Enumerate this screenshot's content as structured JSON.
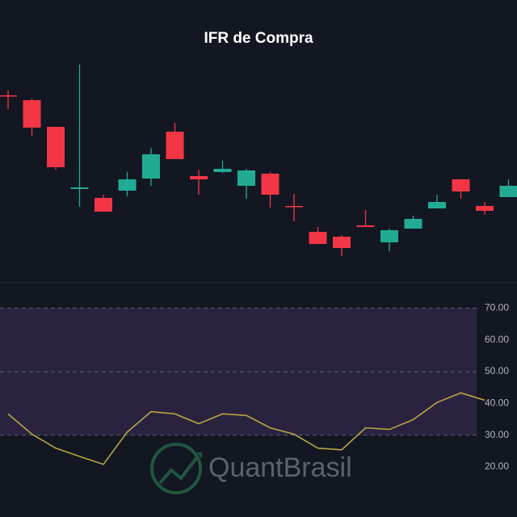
{
  "chart_data": [
    {
      "type": "candlestick",
      "title": "IFR de Compra",
      "open": [
        282,
        276,
        243,
        166,
        155,
        164,
        179,
        237,
        182,
        187,
        170,
        185,
        145,
        113,
        107,
        121,
        100,
        117,
        142,
        178,
        145,
        156
      ],
      "high": [
        288,
        278,
        243,
        320,
        159,
        187,
        217,
        248,
        190,
        201,
        191,
        187,
        160,
        119,
        109,
        140,
        117,
        133,
        159,
        178,
        150,
        178
      ],
      "low": [
        265,
        232,
        190,
        144,
        138,
        157,
        170,
        203,
        159,
        186,
        154,
        143,
        126,
        98,
        83,
        119,
        89,
        117,
        142,
        154,
        134,
        156
      ],
      "close": [
        281,
        242,
        193,
        168,
        138,
        178,
        209,
        203,
        178,
        191,
        189,
        159,
        144,
        98,
        93,
        119,
        115,
        129,
        150,
        163,
        139,
        170
      ],
      "up_color": "#22ab94",
      "down_color": "#f23645",
      "ylim": [
        50,
        340
      ]
    },
    {
      "type": "line",
      "color": "#b5a642",
      "values": [
        36.7,
        30.3,
        25.9,
        23.3,
        20.8,
        31.0,
        37.4,
        36.7,
        33.6,
        36.7,
        36.2,
        32.3,
        30.3,
        25.9,
        25.4,
        32.3,
        31.8,
        34.9,
        40.3,
        43.3,
        41.0
      ],
      "ylim": [
        14.4,
        78
      ],
      "yticks": [
        {
          "value": 70,
          "label": "70.00"
        },
        {
          "value": 60,
          "label": "60.00"
        },
        {
          "value": 50,
          "label": "50.00"
        },
        {
          "value": 40,
          "label": "40.00"
        },
        {
          "value": 30,
          "label": "30.00"
        },
        {
          "value": 20,
          "label": "20.00"
        }
      ],
      "band": [
        30,
        70
      ],
      "hlines": [
        70,
        50,
        30
      ],
      "band_color": "#2a2340"
    }
  ],
  "watermark": "QuantBrasil"
}
